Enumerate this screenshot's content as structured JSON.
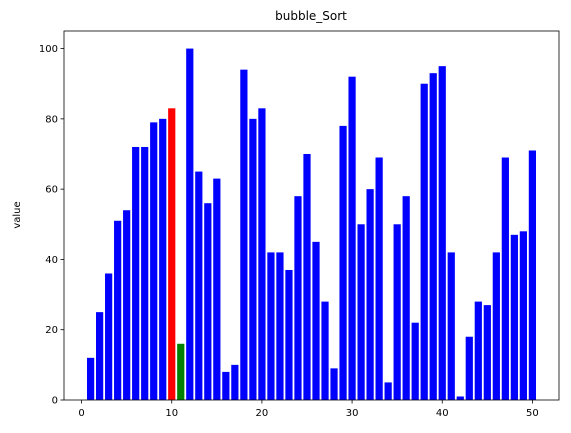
{
  "chart_data": {
    "type": "bar",
    "title": "bubble_Sort",
    "xlabel": "",
    "ylabel": "value",
    "x": [
      1,
      2,
      3,
      4,
      5,
      6,
      7,
      8,
      9,
      10,
      11,
      12,
      13,
      14,
      15,
      16,
      17,
      18,
      19,
      20,
      21,
      22,
      23,
      24,
      25,
      26,
      27,
      28,
      29,
      30,
      31,
      32,
      33,
      34,
      35,
      36,
      37,
      38,
      39,
      40,
      41,
      42,
      43,
      44,
      45,
      46,
      47,
      48,
      49,
      50
    ],
    "values": [
      12,
      25,
      36,
      51,
      54,
      72,
      72,
      79,
      80,
      83,
      16,
      100,
      65,
      56,
      63,
      8,
      10,
      94,
      80,
      83,
      42,
      42,
      37,
      58,
      70,
      45,
      28,
      9,
      78,
      92,
      50,
      60,
      69,
      5,
      50,
      58,
      22,
      90,
      93,
      95,
      42,
      1,
      18,
      28,
      27,
      42,
      69,
      47,
      48,
      71
    ],
    "highlight": {
      "red": [
        10
      ],
      "green": [
        11
      ]
    },
    "colors": {
      "default": "#0000ff",
      "red": "#ff0000",
      "green": "#008000"
    },
    "xlim": [
      -1.95,
      52.95
    ],
    "ylim": [
      0,
      105
    ],
    "xticks": [
      0,
      10,
      20,
      30,
      40,
      50
    ],
    "yticks": [
      0,
      20,
      40,
      60,
      80,
      100
    ],
    "grid": false
  }
}
